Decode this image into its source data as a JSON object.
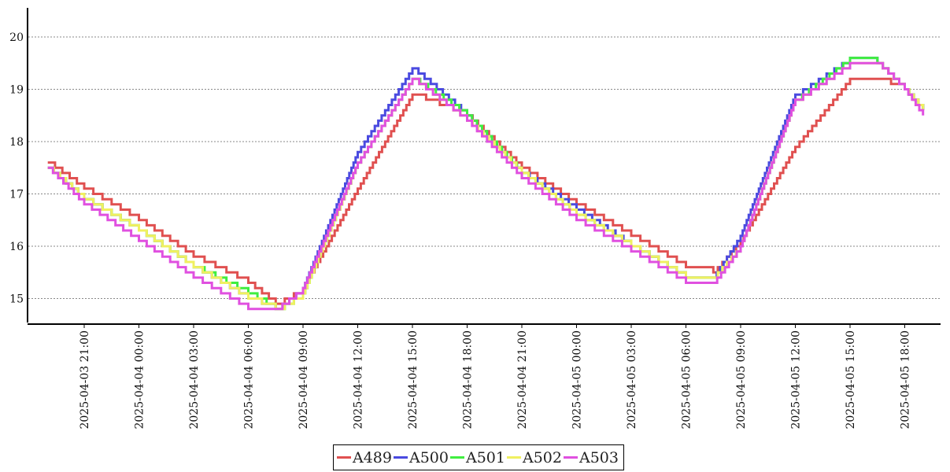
{
  "chart_data": {
    "type": "line",
    "title": "",
    "xlabel": "",
    "ylabel": "",
    "ylim": [
      14.5,
      20.5
    ],
    "y_ticks": [
      15,
      16,
      17,
      18,
      19,
      20
    ],
    "grid": "horizontal dotted",
    "legend_position": "bottom-center",
    "x_ticks": [
      "2025-04-03  21:00",
      "2025-04-04  00:00",
      "2025-04-04  03:00",
      "2025-04-04  06:00",
      "2025-04-04  09:00",
      "2025-04-04  12:00",
      "2025-04-04  15:00",
      "2025-04-04  18:00",
      "2025-04-04  21:00",
      "2025-04-05  00:00",
      "2025-04-05  03:00",
      "2025-04-05  06:00",
      "2025-04-05  09:00",
      "2025-04-05  12:00",
      "2025-04-05  15:00",
      "2025-04-05  18:00"
    ],
    "x": [
      "2025-04-03 19:00",
      "2025-04-03 21:00",
      "2025-04-04 00:00",
      "2025-04-04 03:00",
      "2025-04-04 06:00",
      "2025-04-04 07:30",
      "2025-04-04 09:00",
      "2025-04-04 12:00",
      "2025-04-04 15:00",
      "2025-04-04 18:00",
      "2025-04-04 21:00",
      "2025-04-05 00:00",
      "2025-04-05 03:00",
      "2025-04-05 06:00",
      "2025-04-05 07:30",
      "2025-04-05 09:00",
      "2025-04-05 12:00",
      "2025-04-05 15:00",
      "2025-04-05 16:30",
      "2025-04-05 18:00",
      "2025-04-05 19:00"
    ],
    "series": [
      {
        "name": "A489",
        "color": "#e05050",
        "values": [
          17.6,
          17.1,
          16.5,
          15.8,
          15.3,
          14.9,
          15.2,
          17.1,
          18.9,
          18.5,
          17.5,
          16.8,
          16.2,
          15.6,
          15.5,
          16.1,
          17.9,
          19.2,
          19.2,
          19.0,
          18.6
        ]
      },
      {
        "name": "A500",
        "color": "#4a4ae0",
        "values": [
          17.5,
          16.9,
          16.3,
          15.6,
          15.0,
          14.8,
          15.2,
          17.8,
          19.4,
          18.5,
          17.4,
          16.7,
          16.0,
          15.4,
          15.4,
          16.2,
          18.9,
          19.6,
          19.5,
          19.0,
          18.6
        ]
      },
      {
        "name": "A501",
        "color": "#40ee40",
        "values": [
          17.5,
          16.9,
          16.3,
          15.6,
          15.1,
          14.8,
          15.1,
          17.6,
          19.2,
          18.5,
          17.4,
          16.6,
          16.0,
          15.4,
          15.4,
          16.0,
          18.8,
          19.6,
          19.5,
          19.0,
          18.6
        ]
      },
      {
        "name": "A502",
        "color": "#f0f060",
        "values": [
          17.5,
          16.9,
          16.3,
          15.6,
          15.0,
          14.8,
          15.1,
          17.6,
          19.2,
          18.4,
          17.4,
          16.6,
          16.0,
          15.4,
          15.4,
          16.0,
          18.8,
          19.5,
          19.5,
          19.0,
          18.6
        ]
      },
      {
        "name": "A503",
        "color": "#e050e0",
        "values": [
          17.5,
          16.8,
          16.1,
          15.4,
          14.8,
          14.8,
          15.2,
          17.6,
          19.2,
          18.4,
          17.3,
          16.5,
          15.9,
          15.3,
          15.3,
          16.0,
          18.8,
          19.5,
          19.5,
          19.0,
          18.5
        ]
      }
    ]
  }
}
